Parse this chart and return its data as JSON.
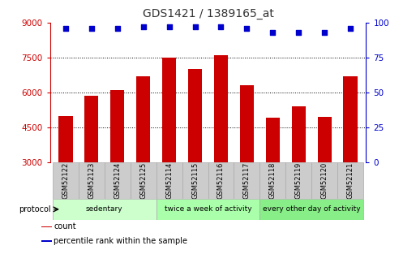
{
  "title": "GDS1421 / 1389165_at",
  "samples": [
    "GSM52122",
    "GSM52123",
    "GSM52124",
    "GSM52125",
    "GSM52114",
    "GSM52115",
    "GSM52116",
    "GSM52117",
    "GSM52118",
    "GSM52119",
    "GSM52120",
    "GSM52121"
  ],
  "counts": [
    5000,
    5850,
    6100,
    6700,
    7500,
    7000,
    7600,
    6300,
    4900,
    5400,
    4950,
    6700
  ],
  "percentile_ranks": [
    96,
    96,
    96,
    97,
    97,
    97,
    97,
    96,
    93,
    93,
    93,
    96
  ],
  "bar_color": "#cc0000",
  "dot_color": "#0000cc",
  "ylim_left": [
    3000,
    9000
  ],
  "ylim_right": [
    0,
    100
  ],
  "yticks_left": [
    3000,
    4500,
    6000,
    7500,
    9000
  ],
  "yticks_right": [
    0,
    25,
    50,
    75,
    100
  ],
  "groups": [
    {
      "label": "sedentary",
      "start": 0,
      "end": 4,
      "color": "#ccffcc"
    },
    {
      "label": "twice a week of activity",
      "start": 4,
      "end": 8,
      "color": "#aaffaa"
    },
    {
      "label": "every other day of activity",
      "start": 8,
      "end": 12,
      "color": "#88ee88"
    }
  ],
  "legend_items": [
    {
      "label": "count",
      "color": "#cc0000"
    },
    {
      "label": "percentile rank within the sample",
      "color": "#0000cc"
    }
  ],
  "background_color": "#ffffff",
  "tick_label_color_left": "#cc0000",
  "tick_label_color_right": "#0000cc",
  "bar_bottom": 3000,
  "xtick_bg": "#cccccc",
  "xtick_edge": "#aaaaaa"
}
